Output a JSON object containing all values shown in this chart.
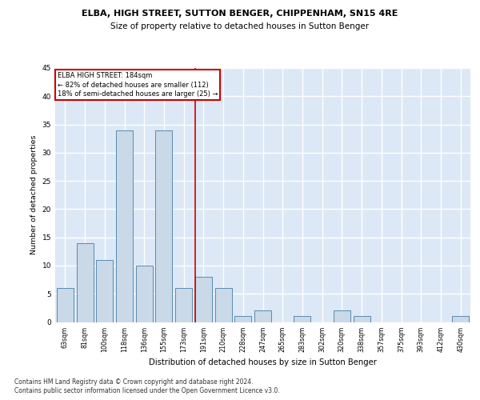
{
  "title1": "ELBA, HIGH STREET, SUTTON BENGER, CHIPPENHAM, SN15 4RE",
  "title2": "Size of property relative to detached houses in Sutton Benger",
  "xlabel": "Distribution of detached houses by size in Sutton Benger",
  "ylabel": "Number of detached properties",
  "footer1": "Contains HM Land Registry data © Crown copyright and database right 2024.",
  "footer2": "Contains public sector information licensed under the Open Government Licence v3.0.",
  "categories": [
    "63sqm",
    "81sqm",
    "100sqm",
    "118sqm",
    "136sqm",
    "155sqm",
    "173sqm",
    "191sqm",
    "210sqm",
    "228sqm",
    "247sqm",
    "265sqm",
    "283sqm",
    "302sqm",
    "320sqm",
    "338sqm",
    "357sqm",
    "375sqm",
    "393sqm",
    "412sqm",
    "430sqm"
  ],
  "values": [
    6,
    14,
    11,
    34,
    10,
    34,
    6,
    8,
    6,
    1,
    2,
    0,
    1,
    0,
    2,
    1,
    0,
    0,
    0,
    0,
    1
  ],
  "bar_color": "#c9d9e8",
  "bar_edge_color": "#5a8ab0",
  "background_color": "#dce8f5",
  "grid_color": "#ffffff",
  "ref_line_color": "#cc0000",
  "annotation_line1": "ELBA HIGH STREET: 184sqm",
  "annotation_line2": "← 82% of detached houses are smaller (112)",
  "annotation_line3": "18% of semi-detached houses are larger (25) →",
  "annotation_box_color": "#ffffff",
  "annotation_box_edge": "#cc0000",
  "ylim": [
    0,
    45
  ],
  "yticks": [
    0,
    5,
    10,
    15,
    20,
    25,
    30,
    35,
    40,
    45
  ]
}
